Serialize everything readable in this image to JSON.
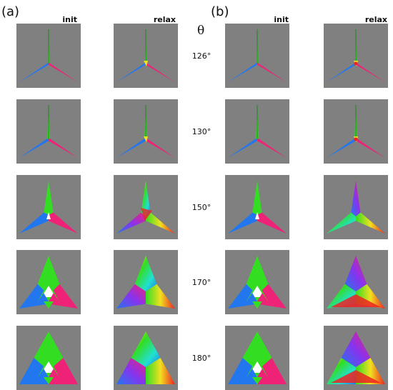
{
  "panels": [
    {
      "label": "(a)",
      "init_label": "init",
      "relax_label": "relax"
    },
    {
      "label": "(b)",
      "init_label": "init",
      "relax_label": "relax"
    }
  ],
  "theta_symbol": "θ",
  "angles": [
    "126°",
    "130°",
    "150°",
    "170°",
    "180°"
  ],
  "colors": {
    "background": "#808080",
    "green": "#33dd22",
    "blue": "#2277ee",
    "magenta": "#ee2277",
    "white": "#ffffff",
    "yellow": "#f0e020",
    "cyan": "#22e0d0",
    "red": "#ee2222"
  }
}
